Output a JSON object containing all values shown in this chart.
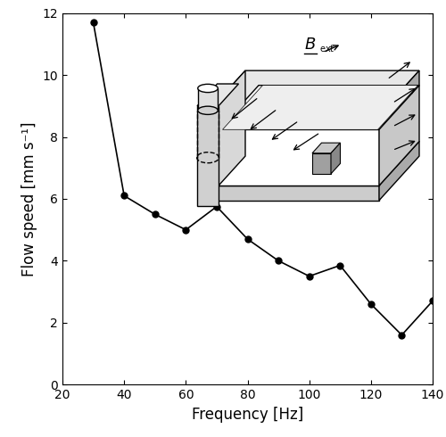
{
  "x": [
    30,
    40,
    50,
    60,
    70,
    80,
    90,
    100,
    110,
    120,
    130,
    140
  ],
  "y": [
    11.7,
    6.1,
    5.5,
    5.0,
    5.75,
    4.7,
    4.0,
    3.5,
    3.85,
    2.6,
    1.6,
    2.7
  ],
  "xlabel": "Frequency [Hz]",
  "ylabel": "Flow speed [mm s⁻¹]",
  "xlim": [
    20,
    140
  ],
  "ylim": [
    0,
    12
  ],
  "xticks": [
    20,
    40,
    60,
    80,
    100,
    120,
    140
  ],
  "yticks": [
    0,
    2,
    4,
    6,
    8,
    10,
    12
  ],
  "line_color": "black",
  "marker": "o",
  "marker_size": 5,
  "marker_facecolor": "black",
  "line_width": 1.2,
  "fig_width": 5.0,
  "fig_height": 4.9,
  "dpi": 100
}
